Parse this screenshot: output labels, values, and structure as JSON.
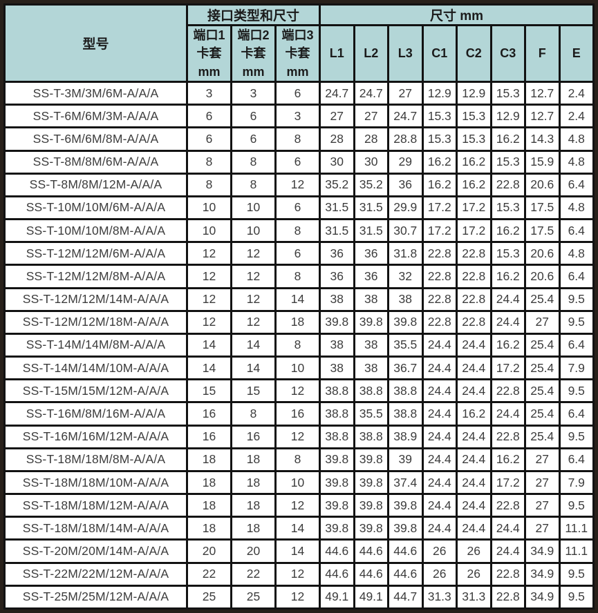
{
  "table": {
    "header": {
      "model": "型号",
      "interface_group": "接口类型和尺寸",
      "dimension_group": "尺寸 mm",
      "port_columns": [
        "端口1\n卡套\nmm",
        "端口2\n卡套\nmm",
        "端口3\n卡套\nmm"
      ],
      "dim_columns": [
        "L1",
        "L2",
        "L3",
        "C1",
        "C2",
        "C3",
        "F",
        "E"
      ]
    },
    "columns_order": [
      "model",
      "port1",
      "port2",
      "port3",
      "L1",
      "L2",
      "L3",
      "C1",
      "C2",
      "C3",
      "F",
      "E"
    ],
    "rows": [
      [
        "SS-T-3M/3M/6M-A/A/A",
        "3",
        "3",
        "6",
        "24.7",
        "24.7",
        "27",
        "12.9",
        "12.9",
        "15.3",
        "12.7",
        "2.4"
      ],
      [
        "SS-T-6M/6M/3M-A/A/A",
        "6",
        "6",
        "3",
        "27",
        "27",
        "24.7",
        "15.3",
        "15.3",
        "12.9",
        "12.7",
        "2.4"
      ],
      [
        "SS-T-6M/6M/8M-A/A/A",
        "6",
        "6",
        "8",
        "28",
        "28",
        "28.8",
        "15.3",
        "15.3",
        "16.2",
        "14.3",
        "4.8"
      ],
      [
        "SS-T-8M/8M/6M-A/A/A",
        "8",
        "8",
        "6",
        "30",
        "30",
        "29",
        "16.2",
        "16.2",
        "15.3",
        "15.9",
        "4.8"
      ],
      [
        "SS-T-8M/8M/12M-A/A/A",
        "8",
        "8",
        "12",
        "35.2",
        "35.2",
        "36",
        "16.2",
        "16.2",
        "22.8",
        "20.6",
        "6.4"
      ],
      [
        "SS-T-10M/10M/6M-A/A/A",
        "10",
        "10",
        "6",
        "31.5",
        "31.5",
        "29.9",
        "17.2",
        "17.2",
        "15.3",
        "17.5",
        "4.8"
      ],
      [
        "SS-T-10M/10M/8M-A/A/A",
        "10",
        "10",
        "8",
        "31.5",
        "31.5",
        "30.7",
        "17.2",
        "17.2",
        "16.2",
        "17.5",
        "6.4"
      ],
      [
        "SS-T-12M/12M/6M-A/A/A",
        "12",
        "12",
        "6",
        "36",
        "36",
        "31.8",
        "22.8",
        "22.8",
        "15.3",
        "20.6",
        "4.8"
      ],
      [
        "SS-T-12M/12M/8M-A/A/A",
        "12",
        "12",
        "8",
        "36",
        "36",
        "32",
        "22.8",
        "22.8",
        "16.2",
        "20.6",
        "6.4"
      ],
      [
        "SS-T-12M/12M/14M-A/A/A",
        "12",
        "12",
        "14",
        "38",
        "38",
        "38",
        "22.8",
        "22.8",
        "24.4",
        "25.4",
        "9.5"
      ],
      [
        "SS-T-12M/12M/18M-A/A/A",
        "12",
        "12",
        "18",
        "39.8",
        "39.8",
        "39.8",
        "22.8",
        "22.8",
        "24.4",
        "27",
        "9.5"
      ],
      [
        "SS-T-14M/14M/8M-A/A/A",
        "14",
        "14",
        "8",
        "38",
        "38",
        "35.5",
        "24.4",
        "24.4",
        "16.2",
        "25.4",
        "6.4"
      ],
      [
        "SS-T-14M/14M/10M-A/A/A",
        "14",
        "14",
        "10",
        "38",
        "38",
        "36.7",
        "24.4",
        "24.4",
        "17.2",
        "25.4",
        "7.9"
      ],
      [
        "SS-T-15M/15M/12M-A/A/A",
        "15",
        "15",
        "12",
        "38.8",
        "38.8",
        "38.8",
        "24.4",
        "24.4",
        "22.8",
        "25.4",
        "9.5"
      ],
      [
        "SS-T-16M/8M/16M-A/A/A",
        "16",
        "8",
        "16",
        "38.8",
        "35.5",
        "38.8",
        "24.4",
        "16.2",
        "24.4",
        "25.4",
        "6.4"
      ],
      [
        "SS-T-16M/16M/12M-A/A/A",
        "16",
        "16",
        "12",
        "38.8",
        "38.8",
        "38.9",
        "24.4",
        "24.4",
        "22.8",
        "25.4",
        "9.5"
      ],
      [
        "SS-T-18M/18M/8M-A/A/A",
        "18",
        "18",
        "8",
        "39.8",
        "39.8",
        "39",
        "24.4",
        "24.4",
        "16.2",
        "27",
        "6.4"
      ],
      [
        "SS-T-18M/18M/10M-A/A/A",
        "18",
        "18",
        "10",
        "39.8",
        "39.8",
        "37.4",
        "24.4",
        "24.4",
        "17.2",
        "27",
        "7.9"
      ],
      [
        "SS-T-18M/18M/12M-A/A/A",
        "18",
        "18",
        "12",
        "39.8",
        "39.8",
        "39.8",
        "24.4",
        "24.4",
        "22.8",
        "27",
        "9.5"
      ],
      [
        "SS-T-18M/18M/14M-A/A/A",
        "18",
        "18",
        "14",
        "39.8",
        "39.8",
        "39.8",
        "24.4",
        "24.4",
        "24.4",
        "27",
        "11.1"
      ],
      [
        "SS-T-20M/20M/14M-A/A/A",
        "20",
        "20",
        "14",
        "44.6",
        "44.6",
        "44.6",
        "26",
        "26",
        "24.4",
        "34.9",
        "11.1"
      ],
      [
        "SS-T-22M/22M/12M-A/A/A",
        "22",
        "22",
        "12",
        "44.6",
        "44.6",
        "44.6",
        "26",
        "26",
        "22.8",
        "34.9",
        "9.5"
      ],
      [
        "SS-T-25M/25M/12M-A/A/A",
        "25",
        "25",
        "12",
        "49.1",
        "49.1",
        "44.7",
        "31.3",
        "31.3",
        "22.8",
        "34.9",
        "9.5"
      ]
    ],
    "colors": {
      "header_bg": "#b3d6d7",
      "inner_border": "#121212",
      "outer_border": "#28201a",
      "row_bg": "#ffffff",
      "data_text": "#3c3c3c"
    }
  }
}
